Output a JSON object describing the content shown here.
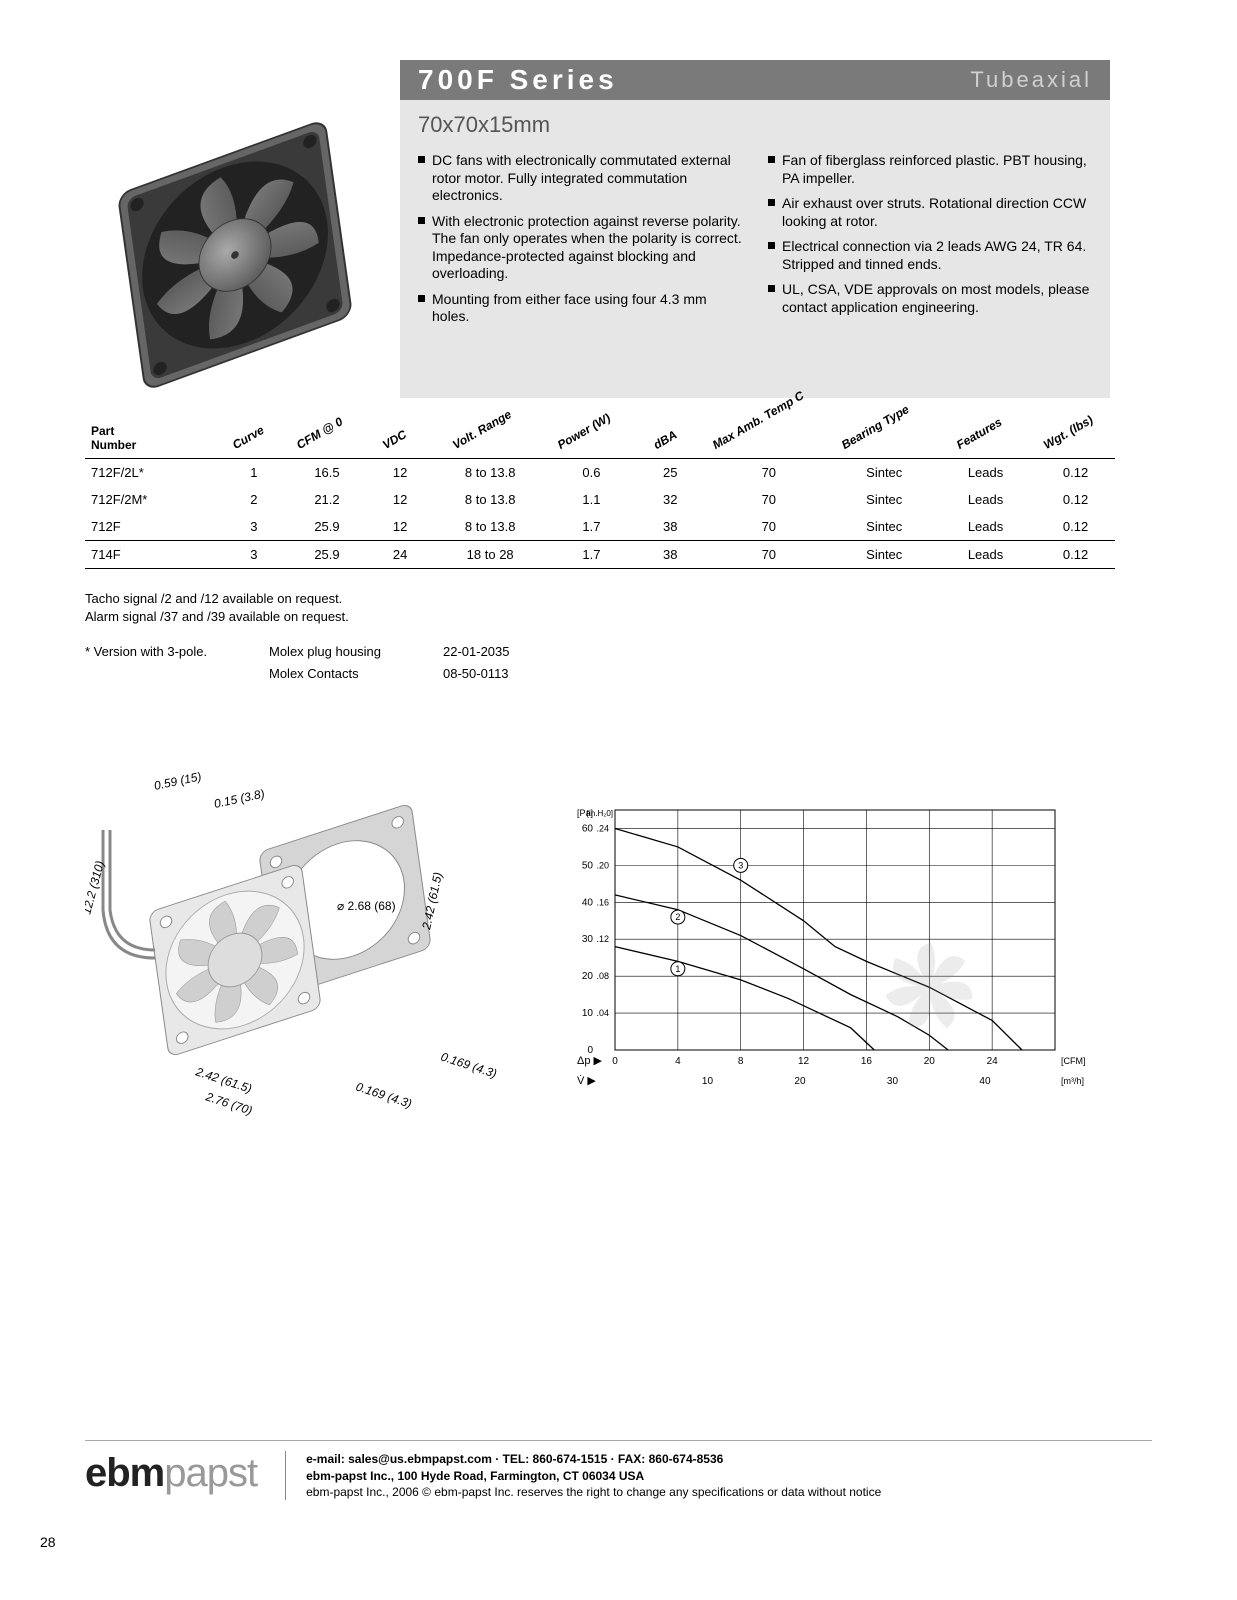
{
  "header": {
    "series": "700F Series",
    "type": "Tubeaxial",
    "band_bg": "#7a7a7a",
    "series_color": "#ffffff",
    "type_color": "#d0d0d0"
  },
  "subtitle": "70x70x15mm",
  "bullets_left": [
    "DC fans with electronically commutated external rotor motor. Fully integrated commutation electronics.",
    "With electronic protection against reverse polarity.  The fan only operates when the polarity is correct. Impedance-protected against blocking and overloading.",
    "Mounting from either face using four 4.3 mm holes."
  ],
  "bullets_right": [
    "Fan of fiberglass reinforced plastic. PBT housing, PA impeller.",
    "Air exhaust over struts.  Rotational direction CCW looking at rotor.",
    "Electrical connection via 2 leads AWG 24, TR 64.  Stripped and tinned ends.",
    "UL, CSA, VDE approvals on most models, please contact application engineering."
  ],
  "table": {
    "headers": [
      "Part Number",
      "Curve",
      "CFM @ 0",
      "VDC",
      "Volt. Range",
      "Power (W)",
      "dBA",
      "Max Amb. Temp C",
      "Bearing Type",
      "Features",
      "Wgt. (lbs)"
    ],
    "col_widths": [
      "120px",
      "60px",
      "70px",
      "60px",
      "100px",
      "80px",
      "60px",
      "90px",
      "90px",
      "90px",
      "70px"
    ],
    "rows": [
      [
        "712F/2L*",
        "1",
        "16.5",
        "12",
        "8 to 13.8",
        "0.6",
        "25",
        "70",
        "Sintec",
        "Leads",
        "0.12"
      ],
      [
        "712F/2M*",
        "2",
        "21.2",
        "12",
        "8 to 13.8",
        "1.1",
        "32",
        "70",
        "Sintec",
        "Leads",
        "0.12"
      ],
      [
        "712F",
        "3",
        "25.9",
        "12",
        "8 to 13.8",
        "1.7",
        "38",
        "70",
        "Sintec",
        "Leads",
        "0.12"
      ],
      [
        "714F",
        "3",
        "25.9",
        "24",
        "18 to 28",
        "1.7",
        "38",
        "70",
        "Sintec",
        "Leads",
        "0.12"
      ]
    ],
    "separator_before_row": 3
  },
  "notes": {
    "line1": "Tacho signal /2 and /12 available on request.",
    "line2": "Alarm signal /37 and /39 available on request.",
    "star_label": "* Version with 3-pole.",
    "molex1_label": "Molex plug housing",
    "molex1_val": "22-01-2035",
    "molex2_label": "Molex Contacts",
    "molex2_val": "08-50-0113"
  },
  "dimensions": {
    "dim1": "0.59 (15)",
    "dim2": "0.15 (3.8)",
    "dim3": "12.2 (310)",
    "dim4": "⌀ 2.68 (68)",
    "dim5": "2.42 (61.5)",
    "dim6": "2.42 (61.5)",
    "dim7": "2.76 (70)",
    "dim8": "0.169 (4.3)",
    "dim9": "0.169 (4.3)"
  },
  "chart": {
    "type": "line",
    "y_label_left": "[Pa]",
    "y_label_right_top": "[in.H₂0]",
    "y_axis_symbol": "Δp",
    "x_axis_symbol": "V̇",
    "x_unit_top": "[CFM]",
    "x_unit_bot": "[m³/h]",
    "y_ticks_pa": [
      0,
      10,
      20,
      30,
      40,
      50,
      60
    ],
    "y_ticks_in": [
      ".04",
      ".08",
      ".12",
      ".16",
      ".20",
      ".24"
    ],
    "x_ticks_cfm": [
      0,
      4,
      8,
      12,
      16,
      20,
      24
    ],
    "x_ticks_m3h": [
      10,
      20,
      30,
      40
    ],
    "xlim": [
      0,
      28
    ],
    "ylim": [
      0,
      65
    ],
    "grid_color": "#000000",
    "bg_color": "#ffffff",
    "line_color": "#000000",
    "line_width": 1.3,
    "label_fontsize": 10,
    "curves": {
      "1": [
        [
          0,
          28
        ],
        [
          4,
          24
        ],
        [
          8,
          19
        ],
        [
          11,
          14
        ],
        [
          13,
          10
        ],
        [
          15,
          6
        ],
        [
          16.5,
          0
        ]
      ],
      "2": [
        [
          0,
          42
        ],
        [
          4,
          38
        ],
        [
          8,
          31
        ],
        [
          12,
          22
        ],
        [
          15,
          15
        ],
        [
          18,
          9
        ],
        [
          20,
          4
        ],
        [
          21.2,
          0
        ]
      ],
      "3": [
        [
          0,
          60
        ],
        [
          4,
          55
        ],
        [
          8,
          46
        ],
        [
          12,
          35
        ],
        [
          14,
          28
        ],
        [
          16,
          24
        ],
        [
          20,
          17
        ],
        [
          24,
          8
        ],
        [
          25.9,
          0
        ]
      ]
    },
    "curve_labels": {
      "1": [
        4,
        22
      ],
      "2": [
        4,
        36
      ],
      "3": [
        8,
        50
      ]
    }
  },
  "footer": {
    "brand_a": "ebm",
    "brand_b": "papst",
    "line1": "e-mail: sales@us.ebmpapst.com · TEL: 860-674-1515 · FAX: 860-674-8536",
    "line2": "ebm-papst Inc., 100 Hyde Road, Farmington, CT 06034 USA",
    "line3": "ebm-papst Inc., 2006 © ebm-papst Inc. reserves the right to change any specifications or data without notice"
  },
  "page_number": "28",
  "colors": {
    "panel_bg": "#e6e6e6",
    "text": "#000000",
    "subtitle": "#555555"
  }
}
